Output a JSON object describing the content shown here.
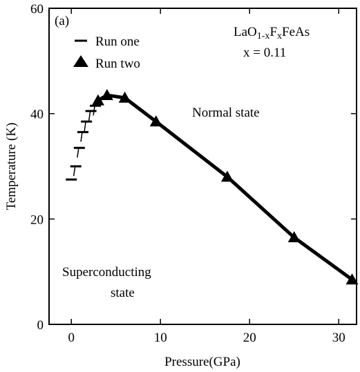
{
  "chart_data": {
    "type": "line",
    "panel_label": "(a)",
    "xlabel": "Pressure(GPa)",
    "ylabel": "Temperature (K)",
    "xlim": [
      -2.5,
      32
    ],
    "ylim": [
      0,
      60
    ],
    "xticks": [
      0,
      10,
      20,
      30
    ],
    "yticks": [
      0,
      20,
      40,
      60
    ],
    "compound": {
      "prefix": "LaO",
      "sub1": "1-x",
      "mid": "F",
      "sub2": "x",
      "suffix": "FeAs"
    },
    "doping_label": "x = 0.11",
    "region_labels": {
      "normal": "Normal state",
      "superconducting_line1": "Superconducting",
      "superconducting_line2": "state"
    },
    "series": [
      {
        "name": "Run one",
        "marker": "dash",
        "x": [
          0,
          0.5,
          0.9,
          1.3,
          1.7,
          2.2,
          2.7
        ],
        "y": [
          27.5,
          30,
          33.5,
          36.5,
          38.5,
          40.5,
          41.5
        ]
      },
      {
        "name": "Run two",
        "marker": "triangle",
        "x": [
          3.0,
          4.0,
          6.0,
          9.5,
          17.5,
          25.0,
          31.5
        ],
        "y": [
          42.5,
          43.5,
          43.0,
          38.5,
          28.0,
          16.5,
          8.5
        ]
      }
    ]
  }
}
